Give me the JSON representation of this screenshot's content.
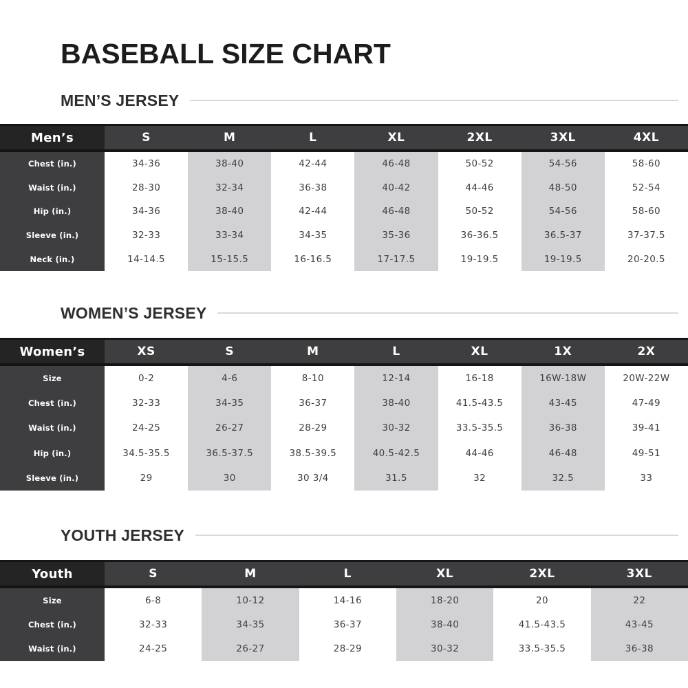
{
  "page": {
    "title": "BASEBALL SIZE CHART"
  },
  "colors": {
    "table_header_corner_bg": "#242424",
    "table_header_bg": "#3e3e40",
    "row_label_bg": "#3e3e40",
    "shaded_column_bg": "#d2d2d4",
    "table_border": "#151515",
    "heading_divider": "#d9d9d9",
    "body_text": "#3f3f41",
    "header_text": "#ffffff"
  },
  "sections": [
    {
      "heading": "MEN’S JERSEY",
      "corner_label": "Men’s",
      "columns": [
        "S",
        "M",
        "L",
        "XL",
        "2XL",
        "3XL",
        "4XL"
      ],
      "rows": [
        {
          "label": "Chest (in.)",
          "values": [
            "34-36",
            "38-40",
            "42-44",
            "46-48",
            "50-52",
            "54-56",
            "58-60"
          ]
        },
        {
          "label": "Waist (in.)",
          "values": [
            "28-30",
            "32-34",
            "36-38",
            "40-42",
            "44-46",
            "48-50",
            "52-54"
          ]
        },
        {
          "label": "Hip (in.)",
          "values": [
            "34-36",
            "38-40",
            "42-44",
            "46-48",
            "50-52",
            "54-56",
            "58-60"
          ]
        },
        {
          "label": "Sleeve (in.)",
          "values": [
            "32-33",
            "33-34",
            "34-35",
            "35-36",
            "36-36.5",
            "36.5-37",
            "37-37.5"
          ]
        },
        {
          "label": "Neck (in.)",
          "values": [
            "14-14.5",
            "15-15.5",
            "16-16.5",
            "17-17.5",
            "19-19.5",
            "19-19.5",
            "20-20.5"
          ]
        }
      ]
    },
    {
      "heading": "WOMEN’S JERSEY",
      "corner_label": "Women’s",
      "columns": [
        "XS",
        "S",
        "M",
        "L",
        "XL",
        "1X",
        "2X"
      ],
      "rows": [
        {
          "label": "Size",
          "values": [
            "0-2",
            "4-6",
            "8-10",
            "12-14",
            "16-18",
            "16W-18W",
            "20W-22W"
          ]
        },
        {
          "label": "Chest (in.)",
          "values": [
            "32-33",
            "34-35",
            "36-37",
            "38-40",
            "41.5-43.5",
            "43-45",
            "47-49"
          ]
        },
        {
          "label": "Waist (in.)",
          "values": [
            "24-25",
            "26-27",
            "28-29",
            "30-32",
            "33.5-35.5",
            "36-38",
            "39-41"
          ]
        },
        {
          "label": "Hip (in.)",
          "values": [
            "34.5-35.5",
            "36.5-37.5",
            "38.5-39.5",
            "40.5-42.5",
            "44-46",
            "46-48",
            "49-51"
          ]
        },
        {
          "label": "Sleeve (in.)",
          "values": [
            "29",
            "30",
            "30 3/4",
            "31.5",
            "32",
            "32.5",
            "33"
          ]
        }
      ]
    },
    {
      "heading": "YOUTH JERSEY",
      "corner_label": "Youth",
      "columns": [
        "S",
        "M",
        "L",
        "XL",
        "2XL",
        "3XL"
      ],
      "rows": [
        {
          "label": "Size",
          "values": [
            "6-8",
            "10-12",
            "14-16",
            "18-20",
            "20",
            "22"
          ]
        },
        {
          "label": "Chest (in.)",
          "values": [
            "32-33",
            "34-35",
            "36-37",
            "38-40",
            "41.5-43.5",
            "43-45"
          ]
        },
        {
          "label": "Waist (in.)",
          "values": [
            "24-25",
            "26-27",
            "28-29",
            "30-32",
            "33.5-35.5",
            "36-38"
          ]
        }
      ]
    }
  ]
}
